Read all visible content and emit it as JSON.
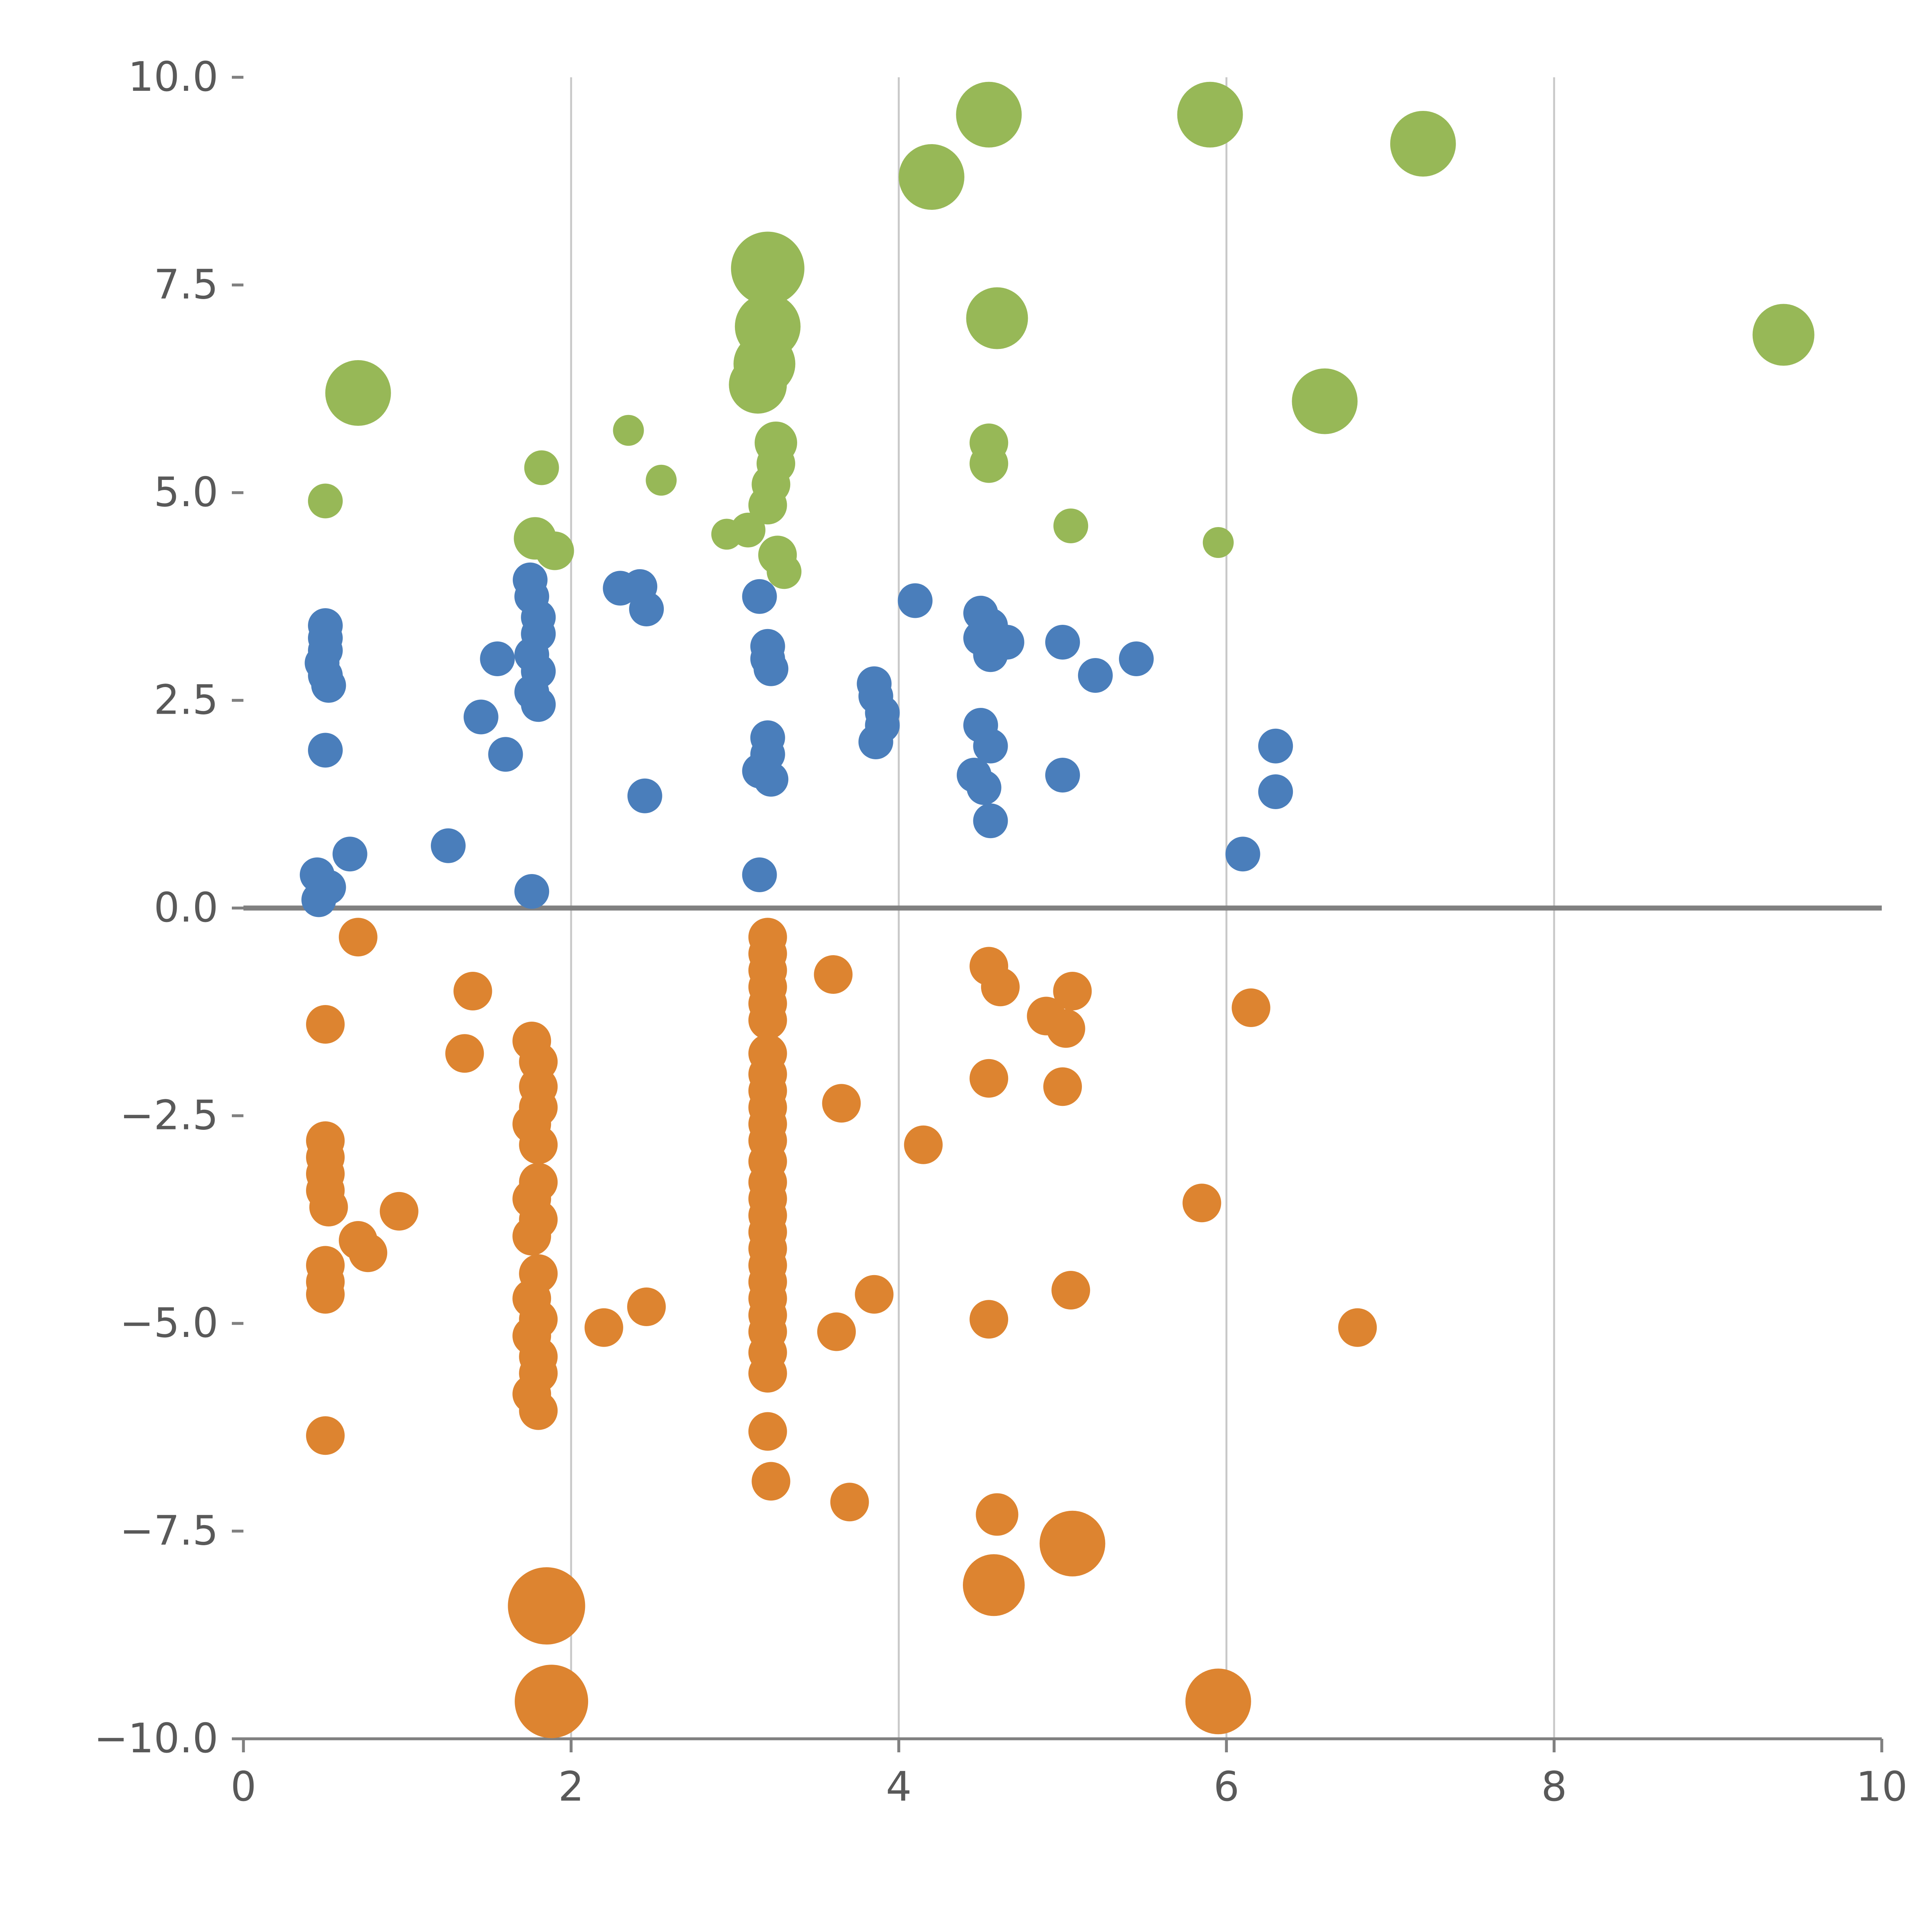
{
  "page": {
    "background": "#ffffff"
  },
  "chart_data": {
    "type": "scatter",
    "title": "",
    "xlabel": "",
    "ylabel": "",
    "xlim": [
      0,
      10
    ],
    "ylim": [
      -10,
      10
    ],
    "grid": "vertical-only",
    "legend": "none",
    "x_ticks": [
      0,
      2,
      4,
      6,
      8,
      10
    ],
    "x_tick_labels": [
      "0",
      "2",
      "4",
      "6",
      "8",
      "10"
    ],
    "x_gridlines": [
      2,
      4,
      6,
      8
    ],
    "y_ticks": [
      10,
      7.5,
      5,
      2.5,
      0,
      -2.5,
      -5,
      -7.5,
      -10
    ],
    "y_tick_labels": [
      "10.0",
      "7.5",
      "5.0",
      "2.5",
      "0.0",
      "−2.5",
      "−5.0",
      "−7.5",
      "−10.0"
    ],
    "zero_line": true,
    "style": {
      "grid_color": "#c8c8c8",
      "zero_line_color": "#808080",
      "axis_color": "#808080",
      "tick_label_color": "#595959",
      "background": "#ffffff"
    },
    "series": [
      {
        "name": "blue",
        "color": "#4a7ebb",
        "points": [
          [
            0.5,
            3.4,
            9
          ],
          [
            0.5,
            3.25,
            9
          ],
          [
            0.5,
            3.1,
            9
          ],
          [
            0.48,
            2.95,
            9
          ],
          [
            0.5,
            2.8,
            9
          ],
          [
            0.52,
            2.68,
            9
          ],
          [
            0.5,
            1.9,
            9
          ],
          [
            0.45,
            0.4,
            9
          ],
          [
            0.52,
            0.25,
            9
          ],
          [
            0.46,
            0.1,
            9
          ],
          [
            0.65,
            0.65,
            9
          ],
          [
            1.25,
            0.75,
            9
          ],
          [
            1.45,
            2.3,
            9
          ],
          [
            1.55,
            3.0,
            9
          ],
          [
            1.6,
            1.85,
            9
          ],
          [
            1.75,
            3.95,
            9
          ],
          [
            1.76,
            3.75,
            9
          ],
          [
            1.8,
            3.5,
            9
          ],
          [
            1.8,
            3.3,
            9
          ],
          [
            1.76,
            3.05,
            9
          ],
          [
            1.8,
            2.85,
            9
          ],
          [
            1.76,
            2.6,
            9
          ],
          [
            1.8,
            2.45,
            9
          ],
          [
            1.76,
            0.2,
            9
          ],
          [
            2.3,
            3.85,
            9
          ],
          [
            2.42,
            3.87,
            9
          ],
          [
            2.46,
            3.6,
            9
          ],
          [
            2.45,
            1.35,
            9
          ],
          [
            3.15,
            3.75,
            9
          ],
          [
            3.2,
            3.15,
            9
          ],
          [
            3.2,
            3.0,
            9
          ],
          [
            3.22,
            2.88,
            9
          ],
          [
            3.2,
            2.05,
            9
          ],
          [
            3.2,
            1.85,
            9
          ],
          [
            3.15,
            1.65,
            9
          ],
          [
            3.22,
            1.55,
            9
          ],
          [
            3.15,
            0.4,
            9
          ],
          [
            4.1,
            3.7,
            9
          ],
          [
            3.85,
            2.7,
            9
          ],
          [
            3.86,
            2.55,
            9
          ],
          [
            3.9,
            2.35,
            9
          ],
          [
            3.9,
            2.2,
            9
          ],
          [
            3.86,
            2.0,
            9
          ],
          [
            4.5,
            3.55,
            9
          ],
          [
            4.56,
            3.4,
            9
          ],
          [
            4.5,
            3.25,
            9
          ],
          [
            4.66,
            3.2,
            9
          ],
          [
            4.56,
            3.05,
            9
          ],
          [
            4.5,
            2.2,
            9
          ],
          [
            4.56,
            1.95,
            9
          ],
          [
            4.46,
            1.6,
            9
          ],
          [
            4.52,
            1.45,
            9
          ],
          [
            4.56,
            1.05,
            9
          ],
          [
            5.0,
            3.2,
            9
          ],
          [
            5.2,
            2.8,
            9
          ],
          [
            5.45,
            3.0,
            9
          ],
          [
            5.0,
            1.6,
            9
          ],
          [
            6.1,
            0.65,
            9
          ],
          [
            6.3,
            1.95,
            9
          ],
          [
            6.3,
            1.4,
            9
          ]
        ]
      },
      {
        "name": "orange",
        "color": "#dd8430",
        "points": [
          [
            0.7,
            -0.35,
            10
          ],
          [
            0.5,
            -1.4,
            10
          ],
          [
            1.4,
            -1.0,
            10
          ],
          [
            1.35,
            -1.75,
            10
          ],
          [
            0.5,
            -2.8,
            10
          ],
          [
            0.5,
            -3.0,
            10
          ],
          [
            0.5,
            -3.2,
            10
          ],
          [
            0.5,
            -3.4,
            10
          ],
          [
            0.52,
            -3.6,
            10
          ],
          [
            0.95,
            -3.65,
            10
          ],
          [
            0.7,
            -4.0,
            10
          ],
          [
            0.76,
            -4.15,
            10
          ],
          [
            0.5,
            -4.3,
            10
          ],
          [
            0.5,
            -4.5,
            10
          ],
          [
            0.5,
            -4.65,
            10
          ],
          [
            0.5,
            -6.35,
            10
          ],
          [
            1.76,
            -1.6,
            10
          ],
          [
            1.8,
            -1.85,
            10
          ],
          [
            1.8,
            -2.15,
            10
          ],
          [
            1.8,
            -2.4,
            10
          ],
          [
            1.76,
            -2.6,
            10
          ],
          [
            1.8,
            -2.85,
            10
          ],
          [
            1.8,
            -3.3,
            10
          ],
          [
            1.76,
            -3.5,
            10
          ],
          [
            1.8,
            -3.75,
            10
          ],
          [
            1.76,
            -3.95,
            10
          ],
          [
            1.8,
            -4.4,
            10
          ],
          [
            1.76,
            -4.7,
            10
          ],
          [
            1.8,
            -4.95,
            10
          ],
          [
            1.76,
            -5.15,
            10
          ],
          [
            1.8,
            -5.4,
            10
          ],
          [
            1.8,
            -5.6,
            10
          ],
          [
            1.76,
            -5.85,
            10
          ],
          [
            1.8,
            -6.05,
            10
          ],
          [
            2.2,
            -5.05,
            10
          ],
          [
            2.46,
            -4.8,
            10
          ],
          [
            1.85,
            -8.4,
            20
          ],
          [
            1.88,
            -9.55,
            19
          ],
          [
            3.2,
            -0.35,
            10
          ],
          [
            3.2,
            -0.55,
            10
          ],
          [
            3.2,
            -0.75,
            10
          ],
          [
            3.2,
            -0.95,
            10
          ],
          [
            3.2,
            -1.15,
            10
          ],
          [
            3.2,
            -1.35,
            10
          ],
          [
            3.2,
            -1.75,
            10
          ],
          [
            3.2,
            -2.0,
            10
          ],
          [
            3.2,
            -2.2,
            10
          ],
          [
            3.2,
            -2.4,
            10
          ],
          [
            3.2,
            -2.6,
            10
          ],
          [
            3.2,
            -2.8,
            10
          ],
          [
            3.2,
            -3.05,
            10
          ],
          [
            3.2,
            -3.3,
            10
          ],
          [
            3.2,
            -3.5,
            10
          ],
          [
            3.2,
            -3.7,
            10
          ],
          [
            3.2,
            -3.9,
            10
          ],
          [
            3.2,
            -4.1,
            10
          ],
          [
            3.2,
            -4.3,
            10
          ],
          [
            3.2,
            -4.5,
            10
          ],
          [
            3.2,
            -4.7,
            10
          ],
          [
            3.2,
            -4.9,
            10
          ],
          [
            3.2,
            -5.1,
            10
          ],
          [
            3.2,
            -5.35,
            10
          ],
          [
            3.2,
            -5.6,
            10
          ],
          [
            3.2,
            -6.3,
            10
          ],
          [
            3.22,
            -6.9,
            10
          ],
          [
            3.6,
            -0.8,
            10
          ],
          [
            3.65,
            -2.35,
            10
          ],
          [
            3.62,
            -5.1,
            10
          ],
          [
            3.7,
            -7.15,
            10
          ],
          [
            3.85,
            -4.65,
            10
          ],
          [
            4.15,
            -2.85,
            10
          ],
          [
            4.55,
            -0.7,
            10
          ],
          [
            4.62,
            -0.95,
            10
          ],
          [
            4.55,
            -2.05,
            10
          ],
          [
            4.55,
            -4.95,
            10
          ],
          [
            4.9,
            -1.3,
            10
          ],
          [
            5.02,
            -1.45,
            10
          ],
          [
            5.06,
            -1.0,
            10
          ],
          [
            5.0,
            -2.15,
            10
          ],
          [
            5.05,
            -4.6,
            10
          ],
          [
            4.6,
            -7.3,
            11
          ],
          [
            4.58,
            -8.15,
            16
          ],
          [
            5.06,
            -7.65,
            17
          ],
          [
            5.85,
            -3.55,
            10
          ],
          [
            6.15,
            -1.2,
            10
          ],
          [
            5.95,
            -9.55,
            17
          ],
          [
            6.8,
            -5.05,
            10
          ]
        ]
      },
      {
        "name": "green",
        "color": "#97b857",
        "points": [
          [
            0.7,
            6.2,
            17
          ],
          [
            0.5,
            4.9,
            9
          ],
          [
            1.82,
            5.3,
            9
          ],
          [
            1.78,
            4.45,
            11
          ],
          [
            1.9,
            4.3,
            10
          ],
          [
            2.35,
            5.75,
            8
          ],
          [
            2.55,
            5.15,
            8
          ],
          [
            3.2,
            7.7,
            19
          ],
          [
            3.2,
            7.0,
            17
          ],
          [
            3.18,
            6.55,
            16
          ],
          [
            3.14,
            6.3,
            15
          ],
          [
            3.25,
            5.6,
            11
          ],
          [
            3.25,
            5.35,
            10
          ],
          [
            3.22,
            5.1,
            10
          ],
          [
            3.2,
            4.85,
            10
          ],
          [
            3.08,
            4.55,
            9
          ],
          [
            2.95,
            4.5,
            8
          ],
          [
            3.26,
            4.25,
            10
          ],
          [
            3.3,
            4.05,
            9
          ],
          [
            4.2,
            8.8,
            17
          ],
          [
            4.55,
            9.55,
            17
          ],
          [
            4.6,
            7.1,
            16
          ],
          [
            4.55,
            5.6,
            10
          ],
          [
            4.55,
            5.35,
            10
          ],
          [
            5.05,
            4.6,
            9
          ],
          [
            5.9,
            9.55,
            17
          ],
          [
            5.95,
            4.4,
            8
          ],
          [
            6.6,
            6.1,
            17
          ],
          [
            7.2,
            9.2,
            17
          ],
          [
            9.4,
            6.9,
            16
          ]
        ]
      }
    ]
  }
}
